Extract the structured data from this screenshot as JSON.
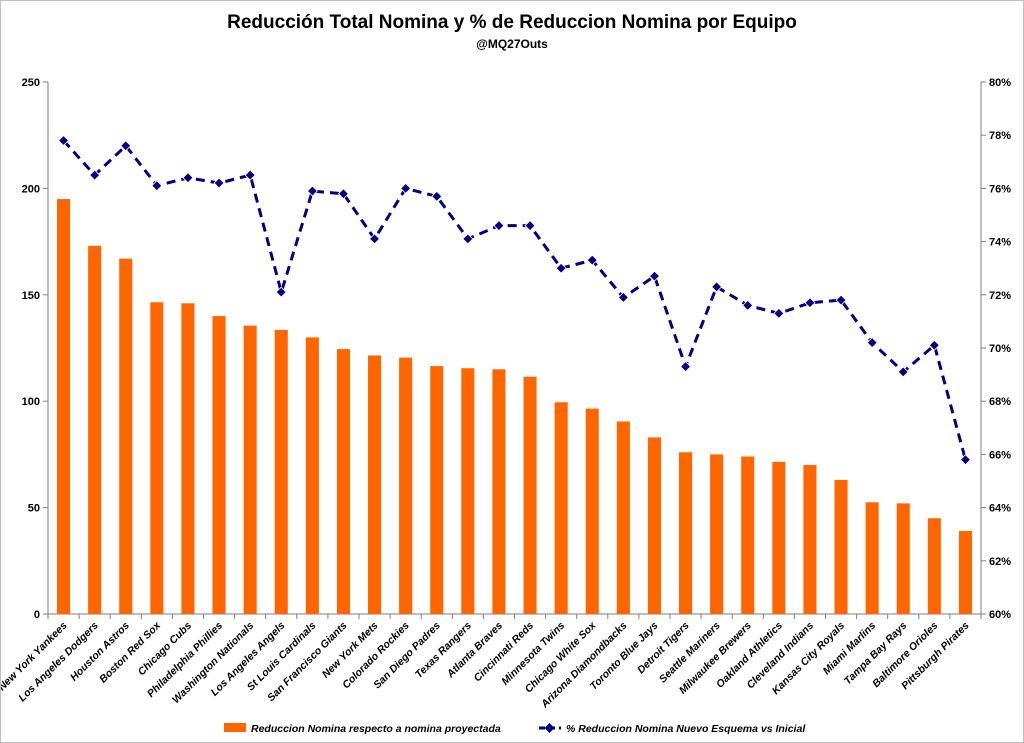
{
  "chart_data": {
    "type": "bar",
    "title": "Reducción Total Nomina y % de Reduccion Nomina por Equipo",
    "subtitle": "@MQ27Outs",
    "categories": [
      "New York Yankees",
      "Los Angeles Dodgers",
      "Houston Astros",
      "Boston Red Sox",
      "Chicago Cubs",
      "Philadelphia Phillies",
      "Washington Nationals",
      "Los Angeles Angels",
      "St Louis Cardinals",
      "San Francisco Giants",
      "New York Mets",
      "Colorado Rockies",
      "San Diego Padres",
      "Texas Rangers",
      "Atlanta Braves",
      "Cincinnati Reds",
      "Minnesota Twins",
      "Chicago White Sox",
      "Arizona Diamondbacks",
      "Toronto Blue Jays",
      "Detroit Tigers",
      "Seattle Mariners",
      "Milwaukee Brewers",
      "Oakland Athletics",
      "Cleveland Indians",
      "Kansas City Royals",
      "Miami Marlins",
      "Tampa Bay Rays",
      "Baltimore Orioles",
      "Pittsburgh Pirates"
    ],
    "series": [
      {
        "name": "Reduccion Nomina respecto a nomina proyectada",
        "type": "bar",
        "axis": "left",
        "color": "#ff6600",
        "values": [
          195,
          173,
          167,
          146.5,
          146,
          140,
          135.5,
          133.5,
          130,
          124.5,
          121.5,
          120.5,
          116.5,
          115.5,
          115,
          111.5,
          99.5,
          96.5,
          90.5,
          83,
          76,
          75,
          74,
          71.5,
          70,
          63,
          52.5,
          52,
          45,
          39
        ]
      },
      {
        "name": "% Reduccion Nomina Nuevo Esquema vs Inicial",
        "type": "line",
        "axis": "right",
        "color": "#000080",
        "values": [
          77.8,
          76.5,
          77.6,
          76.1,
          76.4,
          76.2,
          76.5,
          72.1,
          75.9,
          75.8,
          74.1,
          76.0,
          75.7,
          74.1,
          74.6,
          74.6,
          73.0,
          73.3,
          71.9,
          72.7,
          69.3,
          72.3,
          71.6,
          71.3,
          71.7,
          71.8,
          70.2,
          69.1,
          70.1,
          65.8
        ]
      }
    ],
    "y_left": {
      "min": 0,
      "max": 250,
      "ticks": [
        "0",
        "50",
        "100",
        "150",
        "200",
        "250"
      ]
    },
    "y_right": {
      "min": 60,
      "max": 80,
      "ticks": [
        "60%",
        "62%",
        "64%",
        "66%",
        "68%",
        "70%",
        "72%",
        "74%",
        "76%",
        "78%",
        "80%"
      ]
    },
    "legend_position": "bottom",
    "grid": false
  }
}
